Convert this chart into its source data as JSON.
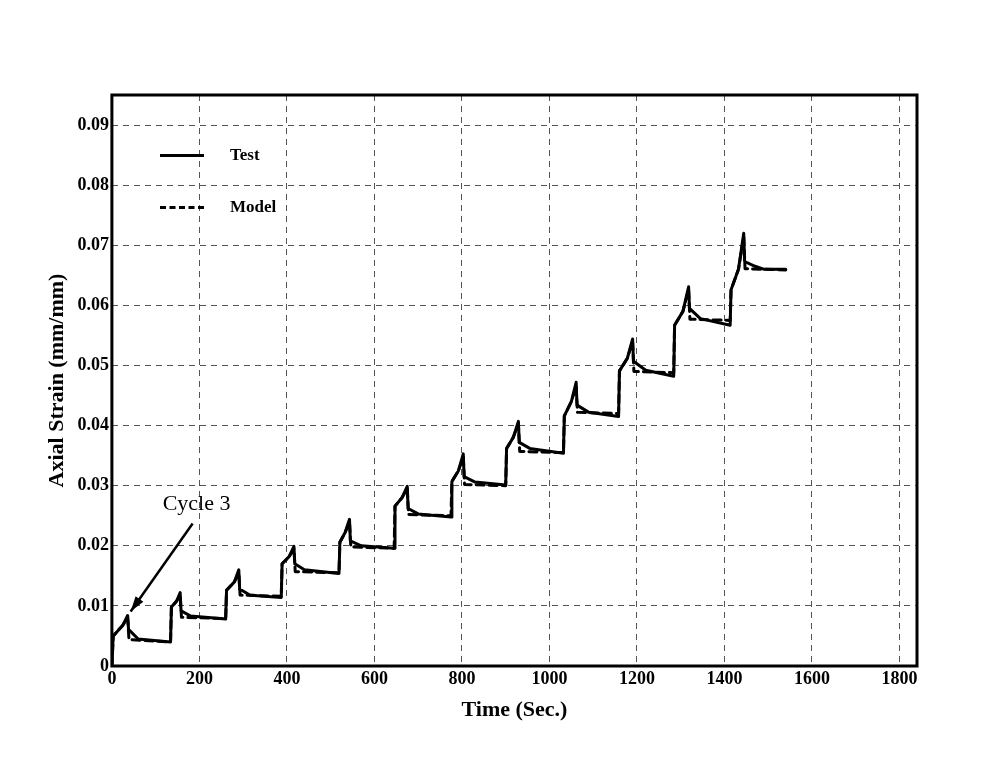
{
  "chart_data": {
    "type": "line",
    "xlabel": "Time (Sec.)",
    "ylabel": "Axial Strain (mm/mm)",
    "xlim": [
      0,
      1840
    ],
    "xticks": [
      0,
      200,
      400,
      600,
      800,
      1000,
      1200,
      1400,
      1600,
      1800
    ],
    "ylim": [
      0,
      0.095
    ],
    "yticks": [
      0,
      0.01,
      0.02,
      0.03,
      0.04,
      0.05,
      0.06,
      0.07,
      0.08,
      0.09
    ],
    "grid": true,
    "legend": "top left",
    "marker": "none",
    "annotations": [
      {
        "text": "Cycle 3",
        "x": 36,
        "y": 0.0084
      }
    ],
    "series": [
      {
        "name": "Test",
        "color": "#000000",
        "line_style": "solid",
        "x": [
          0,
          3,
          25,
          36,
          38,
          60,
          134,
          136,
          148,
          156,
          158,
          180,
          260,
          262,
          280,
          290,
          292,
          315,
          387,
          389,
          405,
          416,
          418,
          440,
          519,
          521,
          533,
          543,
          545,
          570,
          645,
          647,
          663,
          675,
          677,
          700,
          775,
          777,
          792,
          803,
          805,
          830,
          900,
          902,
          917,
          929,
          931,
          955,
          1032,
          1034,
          1050,
          1061,
          1063,
          1090,
          1158,
          1160,
          1178,
          1190,
          1192,
          1220,
          1284,
          1286,
          1305,
          1318,
          1320,
          1345,
          1413,
          1415,
          1432,
          1444,
          1446,
          1470,
          1491,
          1540
        ],
        "values": [
          0,
          0.005,
          0.0068,
          0.0084,
          0.0061,
          0.0045,
          0.004,
          0.0098,
          0.0108,
          0.0122,
          0.0092,
          0.0083,
          0.0078,
          0.0126,
          0.014,
          0.016,
          0.0128,
          0.0118,
          0.0114,
          0.017,
          0.0182,
          0.0199,
          0.017,
          0.016,
          0.0154,
          0.0206,
          0.0222,
          0.0244,
          0.0208,
          0.02,
          0.0196,
          0.0266,
          0.028,
          0.0299,
          0.0262,
          0.0253,
          0.0248,
          0.0307,
          0.0325,
          0.0353,
          0.0315,
          0.0306,
          0.0301,
          0.0362,
          0.038,
          0.0407,
          0.0372,
          0.0362,
          0.0354,
          0.0416,
          0.044,
          0.0472,
          0.0434,
          0.0422,
          0.0415,
          0.0491,
          0.0512,
          0.0544,
          0.0507,
          0.0492,
          0.0482,
          0.0567,
          0.059,
          0.0631,
          0.0595,
          0.0578,
          0.0567,
          0.0626,
          0.066,
          0.072,
          0.0673,
          0.0665,
          0.066,
          0.066
        ]
      },
      {
        "name": "Model",
        "color": "#000000",
        "line_style": "dashed",
        "x": [
          0,
          3,
          25,
          36,
          39,
          134,
          136,
          148,
          156,
          159,
          260,
          262,
          280,
          290,
          293,
          387,
          389,
          405,
          416,
          419,
          519,
          521,
          533,
          543,
          546,
          645,
          647,
          663,
          675,
          678,
          775,
          777,
          792,
          803,
          806,
          900,
          902,
          917,
          929,
          932,
          1032,
          1034,
          1050,
          1061,
          1064,
          1158,
          1160,
          1178,
          1190,
          1193,
          1284,
          1286,
          1305,
          1318,
          1321,
          1413,
          1415,
          1432,
          1444,
          1447,
          1540
        ],
        "values": [
          0,
          0.005,
          0.0068,
          0.008,
          0.0044,
          0.004,
          0.0098,
          0.0108,
          0.0118,
          0.0081,
          0.0079,
          0.0126,
          0.014,
          0.0155,
          0.0118,
          0.0116,
          0.017,
          0.0182,
          0.0195,
          0.0157,
          0.0155,
          0.0206,
          0.0222,
          0.024,
          0.0198,
          0.0196,
          0.0266,
          0.028,
          0.0295,
          0.0252,
          0.025,
          0.0307,
          0.0325,
          0.0348,
          0.0302,
          0.03,
          0.0362,
          0.038,
          0.0402,
          0.0357,
          0.0355,
          0.0416,
          0.044,
          0.0466,
          0.0422,
          0.042,
          0.0491,
          0.0512,
          0.054,
          0.049,
          0.0488,
          0.0567,
          0.059,
          0.0626,
          0.0577,
          0.0575,
          0.0626,
          0.066,
          0.0715,
          0.0661,
          0.0659
        ]
      }
    ]
  }
}
